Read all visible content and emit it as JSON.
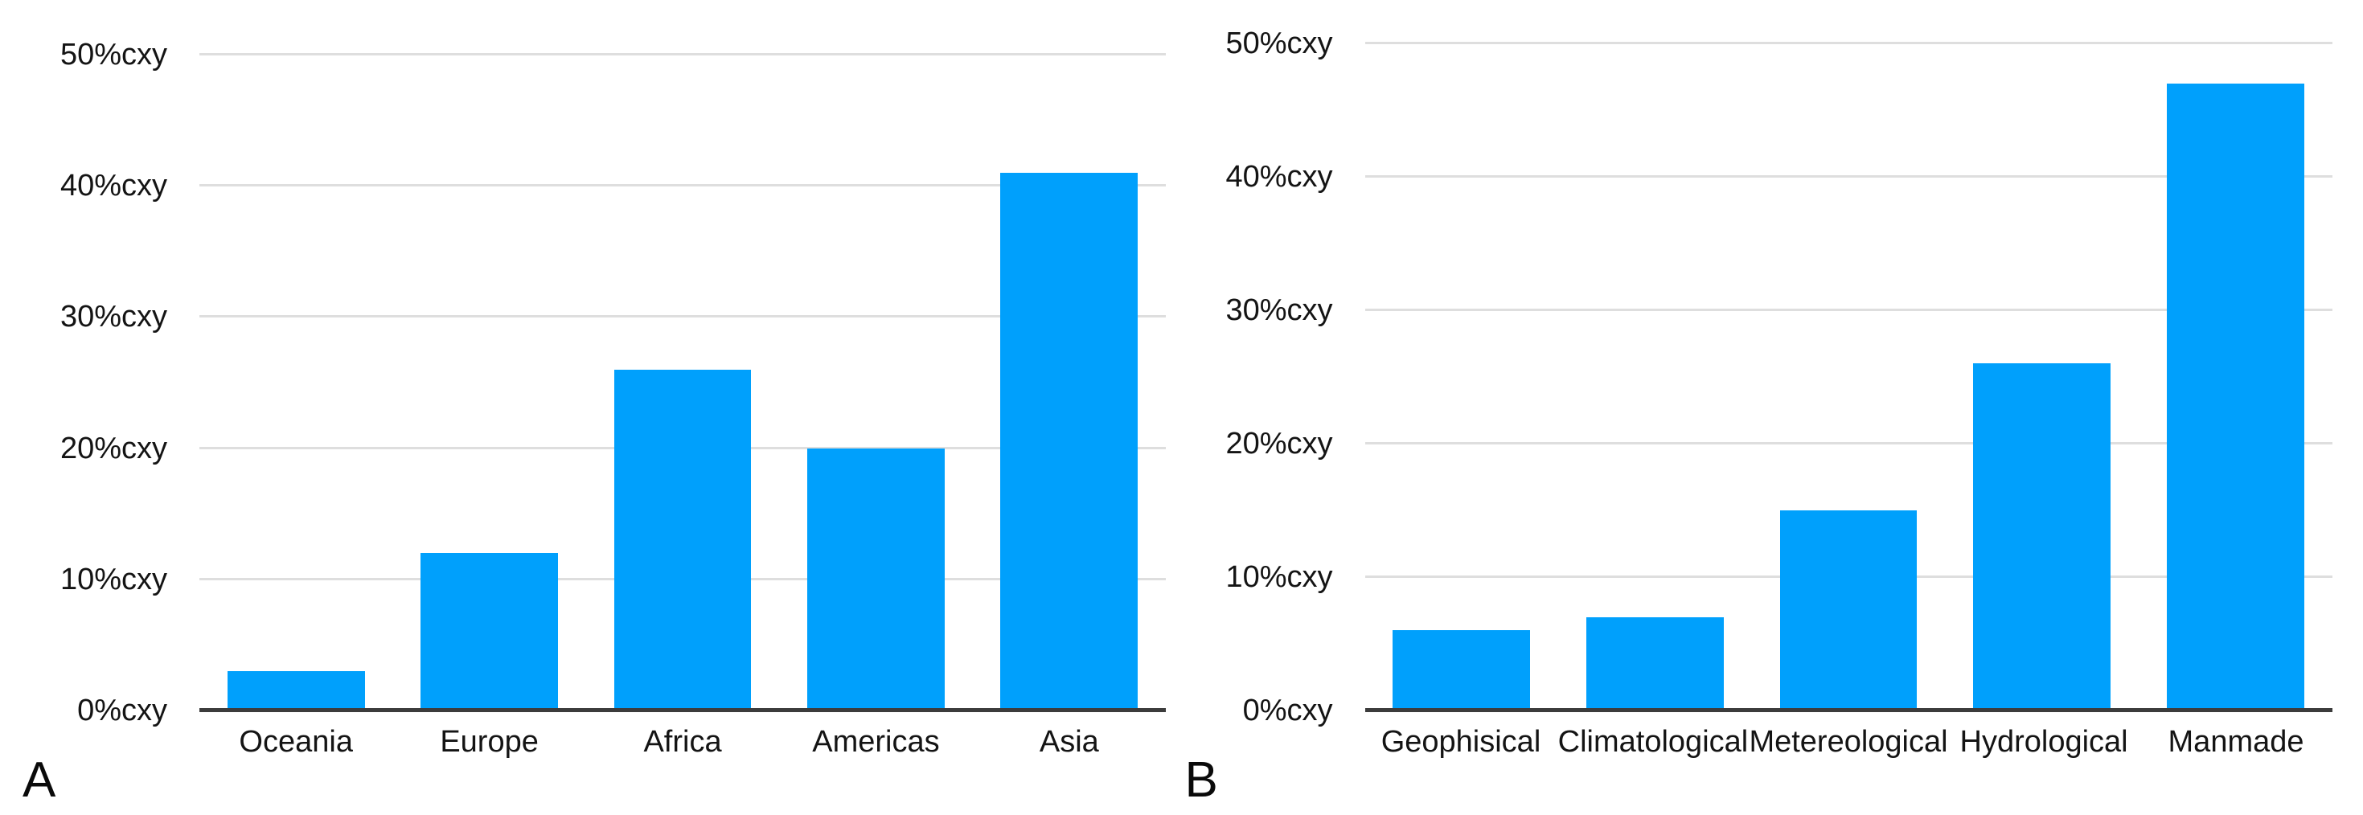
{
  "figure": {
    "background": "#ffffff",
    "bar_color": "#00a0fc",
    "gridline_color": "#dedede",
    "axis_color": "#3c3c3c",
    "text_color": "#141414"
  },
  "chart_data": [
    {
      "type": "bar",
      "panel_label": "A",
      "categories": [
        "Oceania",
        "Europe",
        "Africa",
        "Americas",
        "Asia"
      ],
      "values": [
        3,
        12,
        26,
        20,
        41
      ],
      "ylim": [
        0,
        50
      ],
      "grid": true,
      "legend_position": "none",
      "title": "",
      "xlabel": "",
      "ylabel": "",
      "y_ticks": [
        {
          "value": 0,
          "label": "0%cxy"
        },
        {
          "value": 10,
          "label": "10%cxy"
        },
        {
          "value": 20,
          "label": "20%cxy"
        },
        {
          "value": 30,
          "label": "30%cxy"
        },
        {
          "value": 40,
          "label": "40%cxy"
        },
        {
          "value": 50,
          "label": "50%cxy"
        }
      ]
    },
    {
      "type": "bar",
      "panel_label": "B",
      "categories": [
        "Geophisical",
        "Climatological",
        "Metereological",
        "Hydrological",
        "Manmade"
      ],
      "values": [
        6,
        7,
        15,
        26,
        47
      ],
      "ylim": [
        0,
        50
      ],
      "grid": true,
      "legend_position": "none",
      "title": "",
      "xlabel": "",
      "ylabel": "",
      "y_ticks": [
        {
          "value": 0,
          "label": "0%cxy"
        },
        {
          "value": 10,
          "label": "10%cxy"
        },
        {
          "value": 20,
          "label": "20%cxy"
        },
        {
          "value": 30,
          "label": "30%cxy"
        },
        {
          "value": 40,
          "label": "40%cxy"
        },
        {
          "value": 50,
          "label": "50%cxy"
        }
      ]
    }
  ]
}
